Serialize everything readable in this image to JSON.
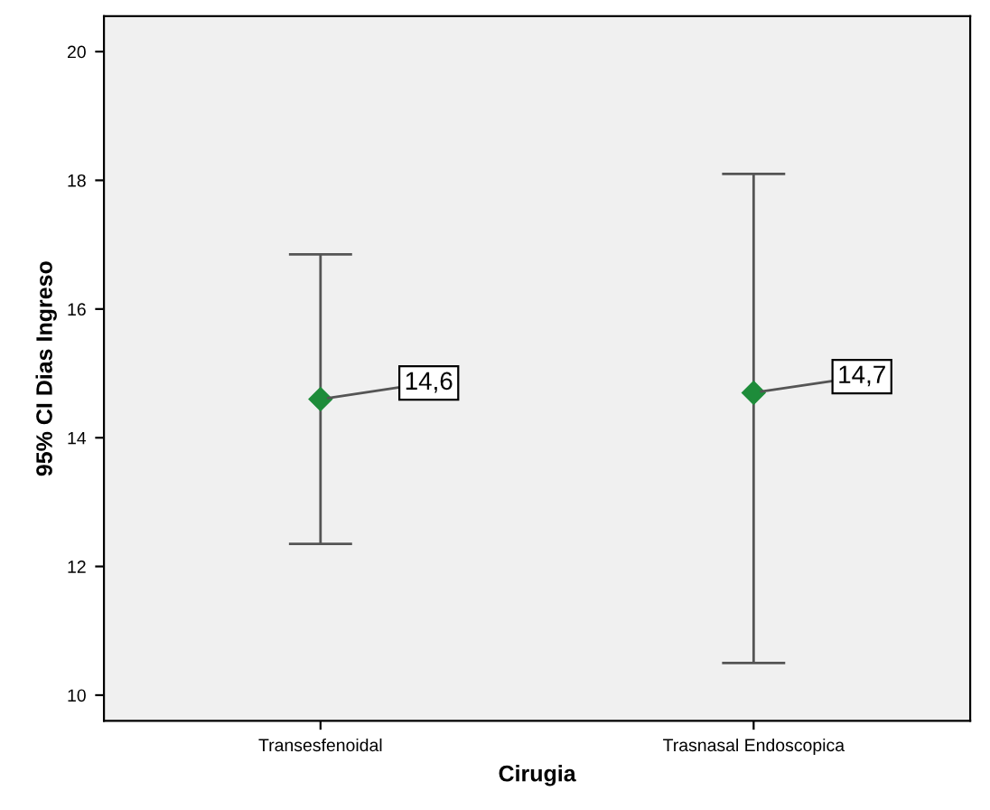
{
  "chart_data": {
    "type": "scatter",
    "xlabel": "Cirugia",
    "ylabel": "95% CI Dias Ingreso",
    "categories": [
      "Transesfenoidal",
      "Trasnasal Endoscopica"
    ],
    "values": [
      14.6,
      14.7
    ],
    "errors": [
      [
        12.35,
        16.85
      ],
      [
        10.5,
        18.1
      ]
    ],
    "value_labels": [
      "14,6",
      "14,7"
    ],
    "color": "#1e8c3a",
    "marker": "diamond",
    "ylim": [
      9.6,
      20.55
    ],
    "yticks": [
      10,
      12,
      14,
      16,
      18,
      20
    ],
    "grid": false
  }
}
